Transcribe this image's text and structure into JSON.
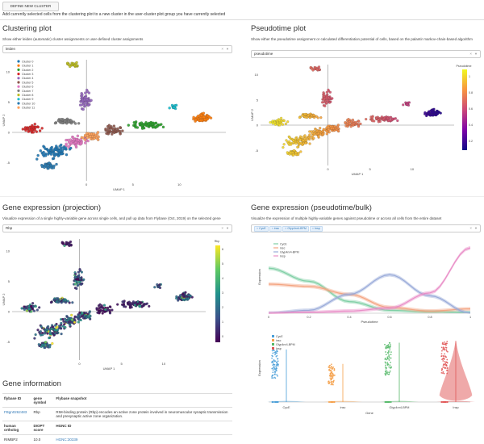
{
  "header": {
    "button_label": "DEFINE NEW CLUSTER",
    "intro": "Add currently selected cells from the clustering plot to a new cluster in the user-cluster plot group you have currently selected"
  },
  "clustering": {
    "title": "Clustering plot",
    "desc": "Show either leiden (automatic) cluster assignments or user-defined cluster assignments",
    "select_value": "leiden",
    "xlabel": "UMAP 1",
    "ylabel": "UMAP 2",
    "xticks": [
      "0",
      "5",
      "10"
    ],
    "yticks": [
      "10",
      "5",
      "0",
      "-5"
    ],
    "legend": [
      "Cluster 0",
      "Cluster 1",
      "Cluster 2",
      "Cluster 3",
      "Cluster 4",
      "Cluster 5",
      "Cluster 6",
      "Cluster 7",
      "Cluster 8",
      "Cluster 9",
      "Cluster 10",
      "Cluster 11"
    ],
    "colors": [
      "#1f77b4",
      "#ff7f0e",
      "#2ca02c",
      "#d62728",
      "#9467bd",
      "#8c564b",
      "#e377c2",
      "#7f7f7f",
      "#bcbd22",
      "#17becf",
      "#2a7ab0",
      "#fda15b"
    ]
  },
  "pseudotime": {
    "title": "Pseudotime plot",
    "desc": "Show either the pseudotime assignment or calculated differentiation potential of cells, based on the palantir markov-chain-based algorithm",
    "select_value": "pseudotime",
    "colorbar_title": "Pseudotime",
    "xlabel": "UMAP 1",
    "ylabel": "UMAP 2",
    "xticks": [
      "0",
      "5",
      "10"
    ],
    "yticks": [
      "10",
      "5",
      "0",
      "-5"
    ],
    "cbar_ticks": [
      "1",
      "0.8",
      "0.6",
      "0.4",
      "0.2"
    ]
  },
  "projection": {
    "title": "Gene expression (projection)",
    "desc": "Visualize expression of a single highly-variable gene across single cells, and pull up data from Flybase (Oct, 2019) on the selected gene",
    "select_value": "Rbp",
    "colorbar_title": "Rbp",
    "xlabel": "UMAP 1",
    "ylabel": "UMAP 2",
    "xticks": [
      "0",
      "5",
      "10"
    ],
    "yticks": [
      "10",
      "5",
      "0",
      "-5"
    ],
    "cbar_ticks": [
      "6",
      "5",
      "4",
      "3",
      "2",
      "1",
      "0"
    ]
  },
  "bulk": {
    "title": "Gene expression (pseudotime/bulk)",
    "desc": "Visualize the expression of multiple highly-variable genes against pseudotime or across all cells from the entire dataset",
    "chips": [
      "CycE",
      "insc",
      "Glyp4nr4-BPM",
      "Insp"
    ],
    "line_xlabel": "Pseudotime",
    "line_ylabel": "Expression",
    "line_xticks": [
      "0",
      "0.2",
      "0.4",
      "0.6",
      "0.8",
      "1"
    ],
    "violin_xlabel": "Gene",
    "violin_ylabel": "Expression",
    "violin_cats": [
      "CycE",
      "insc",
      "Glyp4nr4-BPM",
      "Insp"
    ],
    "series_colors": [
      "#7fcfa5",
      "#f4a582",
      "#9aabd9",
      "#e98ec7"
    ],
    "violin_colors": [
      "#4a9fd8",
      "#f5a04a",
      "#55b868",
      "#e05656"
    ]
  },
  "chart_data": [
    {
      "type": "line",
      "x": [
        0,
        0.2,
        0.4,
        0.6,
        0.8,
        1
      ],
      "xlabel": "Pseudotime",
      "ylabel": "Expression",
      "series": [
        {
          "name": "CycE",
          "values": [
            0.62,
            0.44,
            0.16,
            0.04,
            0.02,
            0.01
          ]
        },
        {
          "name": "insc",
          "values": [
            0.4,
            0.37,
            0.26,
            0.08,
            0.03,
            0.06
          ]
        },
        {
          "name": "Glyp4nr4-BPM",
          "values": [
            0.0,
            0.04,
            0.26,
            0.53,
            0.24,
            0.0
          ]
        },
        {
          "name": "Insp",
          "values": [
            0.0,
            0.01,
            0.03,
            0.07,
            0.28,
            0.9
          ]
        }
      ]
    },
    {
      "type": "scatter",
      "categories": [
        "CycE",
        "insc",
        "Glyp4nr4-BPM",
        "Insp"
      ],
      "xlabel": "Gene",
      "ylabel": "Expression",
      "series": [
        {
          "name": "CycE",
          "max": 0.62
        },
        {
          "name": "insc",
          "max": 0.45
        },
        {
          "name": "Glyp4nr4-BPM",
          "max": 0.7
        },
        {
          "name": "Insp",
          "max": 0.72
        }
      ]
    }
  ],
  "gene_info": {
    "title": "Gene information",
    "headers": [
      "flybase ID",
      "gene symbol",
      "Flybase snapshot"
    ],
    "row": {
      "id": "FBgn0262483",
      "symbol": "Rbp",
      "snapshot": "RIM-binding protein (Rbp) encodes an active zone protein involved in neuromuscular synaptic transmission and presynaptic active zone organization."
    },
    "headers2": [
      "human ortholog",
      "DIOPT score",
      "HGNC ID"
    ],
    "row2": {
      "ortholog": "RIMBP2",
      "score": "10.0",
      "hgnc": "HGNC:30339"
    }
  }
}
